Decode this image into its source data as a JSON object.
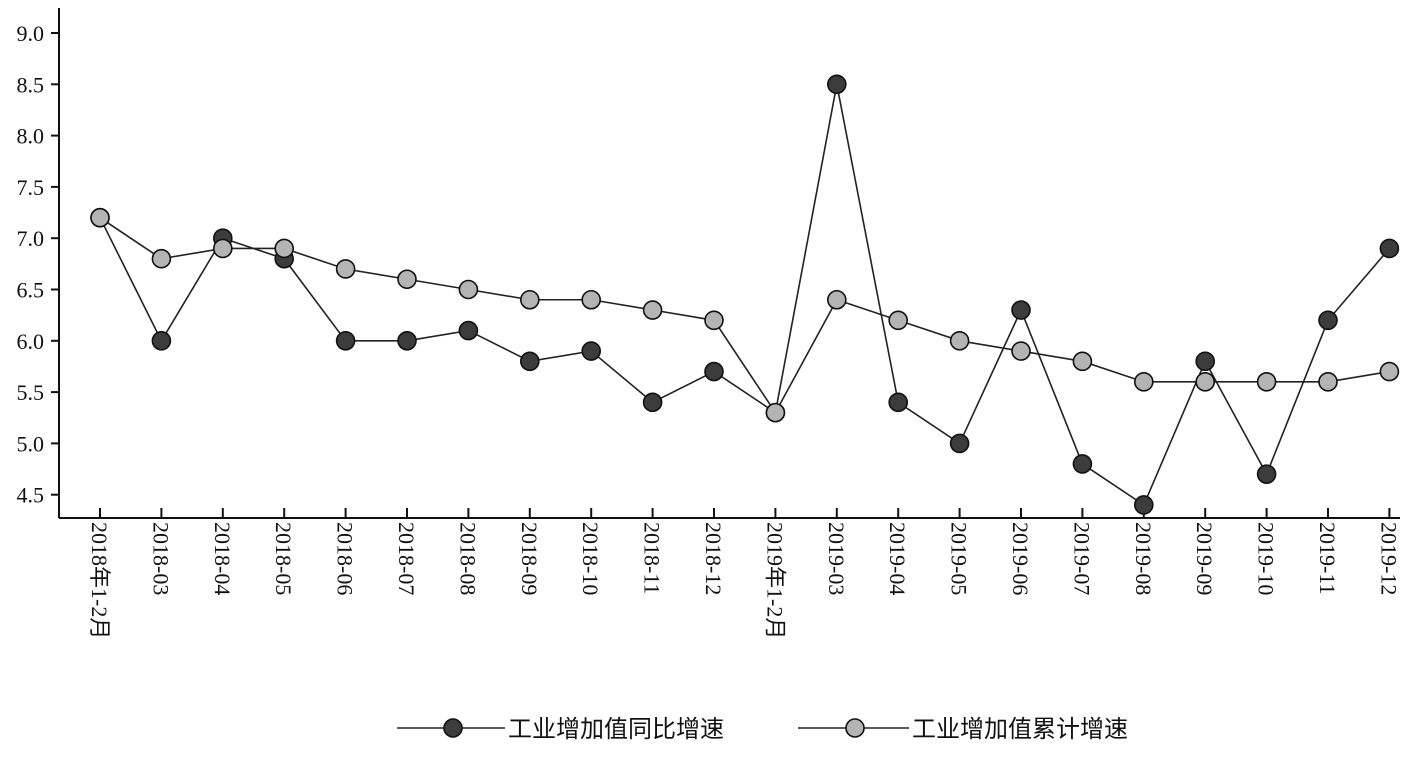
{
  "chart_data": {
    "type": "line",
    "title": "",
    "xlabel": "",
    "ylabel": "",
    "ylim": [
      4.25,
      9.25
    ],
    "yticks": [
      "4.5",
      "5.0",
      "5.5",
      "6.0",
      "6.5",
      "7.0",
      "7.5",
      "8.0",
      "8.5",
      "9.0"
    ],
    "categories": [
      "2018年1-2月",
      "2018-03",
      "2018-04",
      "2018-05",
      "2018-06",
      "2018-07",
      "2018-08",
      "2018-09",
      "2018-10",
      "2018-11",
      "2018-12",
      "2019年1-2月",
      "2019-03",
      "2019-04",
      "2019-05",
      "2019-06",
      "2019-07",
      "2019-08",
      "2019-09",
      "2019-10",
      "2019-11",
      "2019-12"
    ],
    "grid": false,
    "legend_position": "bottom",
    "series": [
      {
        "name": "工业增加值同比增速",
        "color": "#3c3c3c",
        "marker": "filled-circle-dark",
        "values": [
          7.2,
          6.0,
          7.0,
          6.8,
          6.0,
          6.0,
          6.1,
          5.8,
          5.9,
          5.4,
          5.7,
          5.3,
          8.5,
          5.4,
          5.0,
          6.3,
          4.8,
          4.4,
          5.8,
          4.7,
          6.2,
          6.9
        ]
      },
      {
        "name": "工业增加值累计增速",
        "color": "#b4b4b4",
        "marker": "filled-circle-light",
        "values": [
          7.2,
          6.8,
          6.9,
          6.9,
          6.7,
          6.6,
          6.5,
          6.4,
          6.4,
          6.3,
          6.2,
          5.3,
          6.4,
          6.2,
          6.0,
          5.9,
          5.8,
          5.6,
          5.6,
          5.6,
          5.6,
          5.7
        ]
      }
    ]
  }
}
